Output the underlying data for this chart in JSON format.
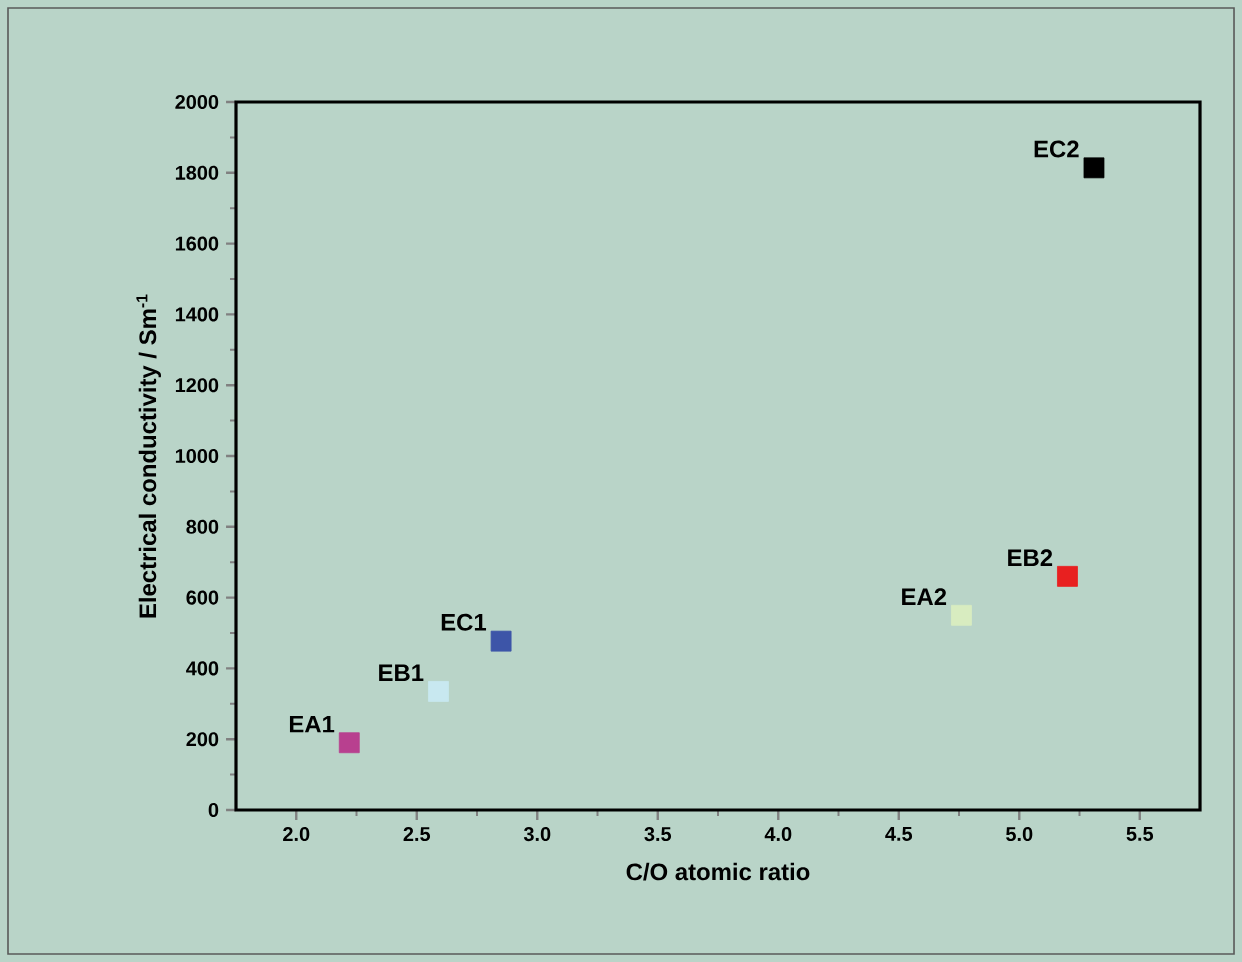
{
  "chart_data": {
    "type": "scatter",
    "xlabel": "C/O atomic ratio",
    "ylabel": "Electrical conductivity / Sm$^{-1}$",
    "marker": "square",
    "grid": false,
    "legend": false,
    "xlim": [
      1.75,
      5.75
    ],
    "xticks": [
      {
        "value": 2.0,
        "label": "2.0"
      },
      {
        "value": 2.5,
        "label": "2.5"
      },
      {
        "value": 3.0,
        "label": "3.0"
      },
      {
        "value": 3.5,
        "label": "3.5"
      },
      {
        "value": 4.0,
        "label": "4.0"
      },
      {
        "value": 4.5,
        "label": "4.5"
      },
      {
        "value": 5.0,
        "label": "5.0"
      },
      {
        "value": 5.5,
        "label": "5.5"
      }
    ],
    "ylim": [
      0,
      2000
    ],
    "yticks": [
      0,
      200,
      400,
      600,
      800,
      1000,
      1200,
      1400,
      1600,
      1800,
      2000
    ],
    "series": [
      {
        "name": "EA1",
        "color": "#b8408f",
        "x": [
          2.22
        ],
        "values": [
          190
        ]
      },
      {
        "name": "EB1",
        "color": "#c8e8f0",
        "x": [
          2.59
        ],
        "values": [
          335
        ]
      },
      {
        "name": "EC1",
        "color": "#3d55a8",
        "x": [
          2.85
        ],
        "values": [
          477
        ]
      },
      {
        "name": "EA2",
        "color": "#d8ecc0",
        "x": [
          4.76
        ],
        "values": [
          550
        ]
      },
      {
        "name": "EB2",
        "color": "#e82020",
        "x": [
          5.2
        ],
        "values": [
          660
        ]
      },
      {
        "name": "EC2",
        "color": "#000000",
        "x": [
          5.31
        ],
        "values": [
          1814
        ]
      }
    ]
  }
}
